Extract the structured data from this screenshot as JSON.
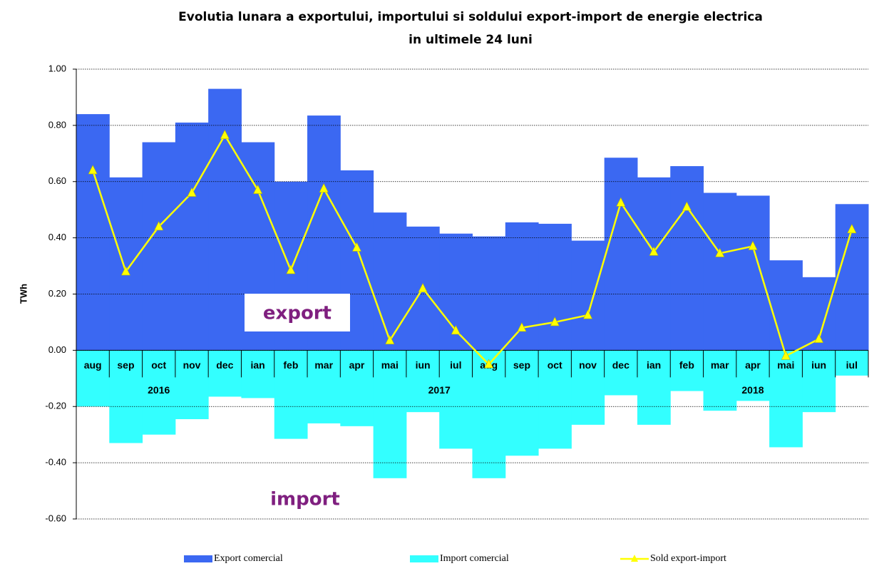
{
  "chart_data": {
    "type": "bar-line",
    "title": [
      "Evolutia lunara a exportului, importului si soldului export-import de energie electrica",
      "in ultimele 24 luni"
    ],
    "y_label": "TWh",
    "categories": [
      "aug",
      "sep",
      "oct",
      "nov",
      "dec",
      "ian",
      "feb",
      "mar",
      "apr",
      "mai",
      "iun",
      "iul",
      "aug",
      "sep",
      "oct",
      "nov",
      "dec",
      "ian",
      "feb",
      "mar",
      "apr",
      "mai",
      "iun",
      "iul"
    ],
    "year_groups": [
      {
        "label": "2016",
        "start": 0,
        "end": 4
      },
      {
        "label": "2017",
        "start": 5,
        "end": 16
      },
      {
        "label": "2018",
        "start": 17,
        "end": 23
      }
    ],
    "series": [
      {
        "name": "Export comercial",
        "type": "bar",
        "color": "#3b68f2",
        "values": [
          0.84,
          0.615,
          0.74,
          0.81,
          0.93,
          0.74,
          0.6,
          0.835,
          0.64,
          0.49,
          0.44,
          0.415,
          0.405,
          0.455,
          0.45,
          0.39,
          0.685,
          0.615,
          0.655,
          0.56,
          0.55,
          0.32,
          0.26,
          0.52
        ]
      },
      {
        "name": "Import comercial",
        "type": "bar",
        "color": "#33ffff",
        "values": [
          -0.2,
          -0.33,
          -0.3,
          -0.245,
          -0.165,
          -0.17,
          -0.315,
          -0.26,
          -0.27,
          -0.455,
          -0.22,
          -0.35,
          -0.455,
          -0.375,
          -0.35,
          -0.265,
          -0.16,
          -0.265,
          -0.145,
          -0.215,
          -0.18,
          -0.345,
          -0.22,
          -0.09
        ]
      },
      {
        "name": "Sold export-import",
        "type": "line",
        "color": "#ffff00",
        "values": [
          0.64,
          0.28,
          0.44,
          0.56,
          0.765,
          0.57,
          0.285,
          0.575,
          0.365,
          0.035,
          0.22,
          0.07,
          -0.05,
          0.08,
          0.1,
          0.125,
          0.525,
          0.35,
          0.51,
          0.345,
          0.37,
          -0.02,
          0.04,
          0.43
        ]
      }
    ],
    "ylim": [
      -0.6,
      1.0
    ],
    "yticks": [
      {
        "value": -0.6,
        "label": "-0.60"
      },
      {
        "value": -0.4,
        "label": "-0.40"
      },
      {
        "value": -0.2,
        "label": "-0.20"
      },
      {
        "value": 0,
        "label": "0.00"
      },
      {
        "value": 0.2,
        "label": "0.20"
      },
      {
        "value": 0.4,
        "label": "0.40"
      },
      {
        "value": 0.6,
        "label": "0.60"
      },
      {
        "value": 0.8,
        "label": "0.80"
      },
      {
        "value": 1.0,
        "label": "1.00"
      }
    ],
    "grid": true,
    "annotations": [
      {
        "text": "export",
        "color": "#7f1f7f"
      },
      {
        "text": "import",
        "color": "#7f1f7f"
      }
    ]
  }
}
